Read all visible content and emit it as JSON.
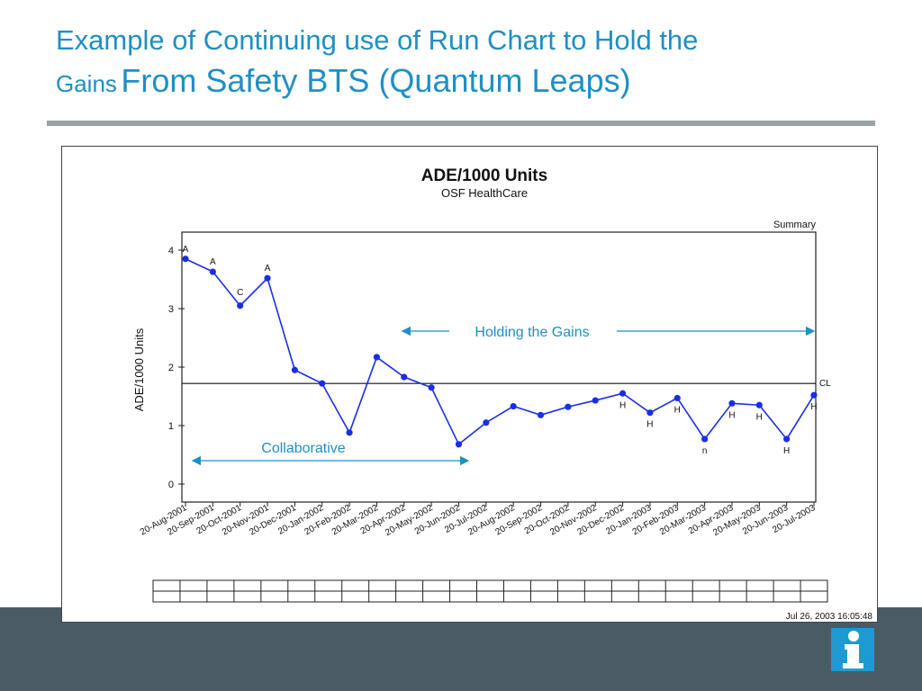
{
  "slide": {
    "title_line1": "Example of Continuing use of Run Chart to Hold the",
    "title_line2_small": "Gains",
    "title_line2_large": "From Safety BTS (Quantum Leaps)",
    "colors": {
      "title": "#1f8fc4",
      "footer": "#4a5b66",
      "logo": "#1b9bd1",
      "annotation": "#1f8fc4",
      "series": "#1a2ee6"
    },
    "logo_icon": "info-icon"
  },
  "chart_data": {
    "type": "line",
    "title": "ADE/1000 Units",
    "subtitle": "OSF HealthCare",
    "corner_label": "Summary",
    "ylabel": "ADE/1000 Units",
    "ylim": [
      0,
      4
    ],
    "yticks": [
      0,
      1,
      2,
      3,
      4
    ],
    "center_line": {
      "label": "CL",
      "value": 1.72
    },
    "categories": [
      "20-Aug-2001",
      "20-Sep-2001",
      "20-Oct-2001",
      "20-Nov-2001",
      "20-Dec-2001",
      "20-Jan-2002",
      "20-Feb-2002",
      "20-Mar-2002",
      "20-Apr-2002",
      "20-May-2002",
      "20-Jun-2002",
      "20-Jul-2002",
      "20-Aug-2002",
      "20-Sep-2002",
      "20-Oct-2002",
      "20-Nov-2002",
      "20-Dec-2002",
      "20-Jan-2003",
      "20-Feb-2003",
      "20-Mar-2003",
      "20-Apr-2003",
      "20-May-2003",
      "20-Jun-2003",
      "20-Jul-2003"
    ],
    "series": [
      {
        "values": [
          3.85,
          3.63,
          3.05,
          3.52,
          1.95,
          1.72,
          0.88,
          2.17,
          1.83,
          1.65,
          0.68,
          1.05,
          1.33,
          1.18,
          1.32,
          1.43,
          1.55,
          1.22,
          1.47,
          0.77,
          1.38,
          1.35,
          0.77,
          1.52
        ]
      }
    ],
    "point_labels": [
      "A",
      "A",
      "C",
      "A",
      "",
      "",
      "",
      "",
      "",
      "",
      "",
      "",
      "",
      "",
      "",
      "",
      "H",
      "H",
      "H",
      "n",
      "H",
      "H",
      "H",
      "H"
    ],
    "annotations": {
      "holding": "Holding the Gains",
      "collaborative": "Collaborative"
    },
    "timestamp": "Jul 26, 2003 16:05:48"
  }
}
